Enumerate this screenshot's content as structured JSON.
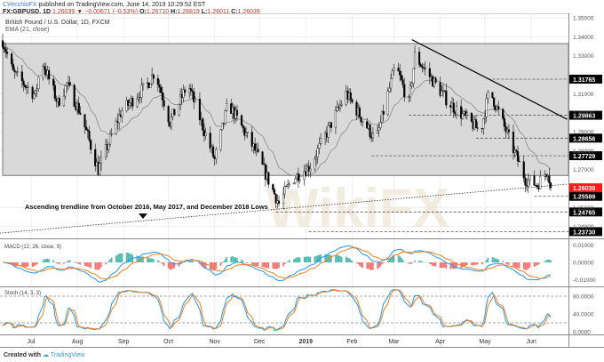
{
  "header": {
    "author": "CVecchioFX",
    "published": "published on TradingView.com, June 14, 2019 10:29:52 EST",
    "symbol": "FX:GBPUSD, 1D",
    "last": "1.26039",
    "change_icon": "triangle-down-icon",
    "change": "−0.00671 (−0.53%)",
    "o_label": "O:",
    "o": "1.26710",
    "h_label": "H:",
    "h": "1.26819",
    "l_label": "L:",
    "l": "1.26011",
    "c_label": "C:",
    "c": "1.26039"
  },
  "main_pane": {
    "title": "British Pound / U.S. Dollar, 1D, FXCM",
    "ema_label": "EMA (21, close)",
    "annotation": "Ascending trendline from October 2016, May 2017, and December 2018 Lows",
    "watermark": "WikiFX"
  },
  "macd_pane": {
    "label": "MACD (12, 26, close, 9)"
  },
  "stoch_pane": {
    "label": "Stoch (14, 3, 3)"
  },
  "footer": {
    "created_with": "Created with",
    "brand": "TradingView"
  },
  "colors": {
    "up_body": "#ffffff",
    "down_body": "#000000",
    "range_box": "#d9d9d9",
    "ema": "#8a8a8a",
    "macd": "#2196f3",
    "signal": "#ef7f1a",
    "hist_pos": "#26a69a",
    "hist_neg": "#ef5350",
    "last_price": "#ff1a1a"
  },
  "chart_data": {
    "type": "candlestick",
    "start_date": "2018-06-12",
    "end_date": "2019-06-14",
    "close_swings": [
      [
        "2018-06-12",
        1.338
      ],
      [
        "2018-06-19",
        1.321
      ],
      [
        "2018-07-04",
        1.309
      ],
      [
        "2018-07-08",
        1.328
      ],
      [
        "2018-07-19",
        1.305
      ],
      [
        "2018-07-25",
        1.315
      ],
      [
        "2018-08-03",
        1.3
      ],
      [
        "2018-08-15",
        1.27
      ],
      [
        "2018-08-30",
        1.3
      ],
      [
        "2018-09-17",
        1.315
      ],
      [
        "2018-09-22",
        1.322
      ],
      [
        "2018-10-02",
        1.295
      ],
      [
        "2018-10-14",
        1.315
      ],
      [
        "2018-11-01",
        1.275
      ],
      [
        "2018-11-10",
        1.305
      ],
      [
        "2018-11-28",
        1.28
      ],
      [
        "2018-12-14",
        1.252
      ],
      [
        "2018-12-23",
        1.265
      ],
      [
        "2019-01-04",
        1.272
      ],
      [
        "2019-01-28",
        1.31
      ],
      [
        "2019-02-17",
        1.285
      ],
      [
        "2019-03-02",
        1.325
      ],
      [
        "2019-03-11",
        1.305
      ],
      [
        "2019-03-15",
        1.33
      ],
      [
        "2019-04-07",
        1.305
      ],
      [
        "2019-04-28",
        1.29
      ],
      [
        "2019-05-04",
        1.312
      ],
      [
        "2019-05-28",
        1.265
      ],
      [
        "2019-06-05",
        1.262
      ],
      [
        "2019-06-12",
        1.27
      ],
      [
        "2019-06-14",
        1.26039
      ]
    ],
    "price_axis": {
      "ticks": [
        "1.35000",
        "1.34000",
        "1.33000",
        "1.31000",
        "1.30000",
        "1.29000",
        "1.28000",
        "1.27000",
        "1.25000",
        "1.24000"
      ],
      "range": [
        1.2345,
        1.3523
      ]
    },
    "levels": [
      {
        "value": "1.31765",
        "from": "2019-05-03"
      },
      {
        "value": "1.29863",
        "from": "2019-03-11"
      },
      {
        "value": "1.28656",
        "from": "2019-04-25"
      },
      {
        "value": "1.27729",
        "from": "2019-02-14"
      },
      {
        "value": "1.25589",
        "from": "2019-06-03"
      },
      {
        "value": "1.24765",
        "from": "2018-12-12"
      },
      {
        "value": "1.23730",
        "from": "2019-01-03"
      }
    ],
    "last_price": "1.26039",
    "range_box": {
      "top": 1.3364,
      "bottom": 1.2669
    },
    "descending_trendline": [
      [
        "2019-03-13",
        1.3385
      ],
      [
        "2019-06-25",
        1.2965
      ]
    ],
    "ascending_trendline": [
      [
        "2018-06-10",
        1.2365
      ],
      [
        "2019-06-25",
        1.2623
      ]
    ],
    "ema_period": 21,
    "macd_axis": [
      "0.01000",
      "0.00000",
      "-0.01000"
    ],
    "stoch_axis": [
      "80.0000",
      "40.0000",
      "0.0000"
    ],
    "stoch_bands": [
      80,
      20
    ],
    "x_ticks": [
      [
        "2018-07-01",
        "Jul"
      ],
      [
        "2018-08-01",
        "Aug"
      ],
      [
        "2018-09-01",
        "Sep"
      ],
      [
        "2018-10-01",
        "Oct"
      ],
      [
        "2018-11-01",
        "Nov"
      ],
      [
        "2018-12-01",
        "Dec"
      ],
      [
        "2019-01-01",
        "2019"
      ],
      [
        "2019-02-01",
        "Feb"
      ],
      [
        "2019-03-01",
        "Mar"
      ],
      [
        "2019-04-01",
        "Apr"
      ],
      [
        "2019-05-01",
        "May"
      ],
      [
        "2019-06-01",
        "Jun"
      ]
    ],
    "grid": true
  }
}
